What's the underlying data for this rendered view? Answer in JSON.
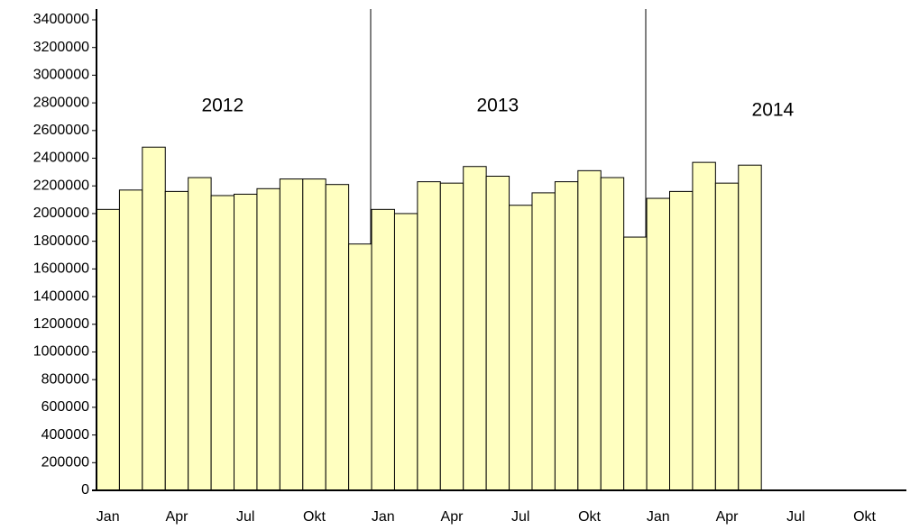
{
  "chart_data": {
    "type": "bar",
    "categories": [
      "Jan",
      null,
      null,
      "Apr",
      null,
      null,
      "Jul",
      null,
      null,
      "Okt",
      null,
      null,
      "Jan",
      null,
      null,
      "Apr",
      null,
      null,
      "Jul",
      null,
      null,
      "Okt",
      null,
      null,
      "Jan",
      null,
      null,
      "Apr",
      null,
      null,
      "Jul",
      null,
      null,
      "Okt",
      null,
      null
    ],
    "values": [
      2030000,
      2170000,
      2480000,
      2160000,
      2260000,
      2130000,
      2140000,
      2180000,
      2250000,
      2250000,
      2210000,
      1780000,
      2030000,
      2000000,
      2230000,
      2220000,
      2340000,
      2270000,
      2060000,
      2150000,
      2230000,
      2310000,
      2260000,
      1830000,
      2110000,
      2160000,
      2370000,
      2220000,
      2350000,
      null,
      null,
      null,
      null,
      null,
      null,
      null
    ],
    "color": "#ffffc0",
    "annotations": [
      "2012",
      "2013",
      "2014"
    ],
    "ylim": [
      0,
      3400000
    ],
    "yticks": [
      0,
      200000,
      400000,
      600000,
      800000,
      1000000,
      1200000,
      1400000,
      1600000,
      1800000,
      2000000,
      2200000,
      2400000,
      2600000,
      2800000,
      3000000,
      3200000,
      3400000
    ],
    "grid": false
  }
}
